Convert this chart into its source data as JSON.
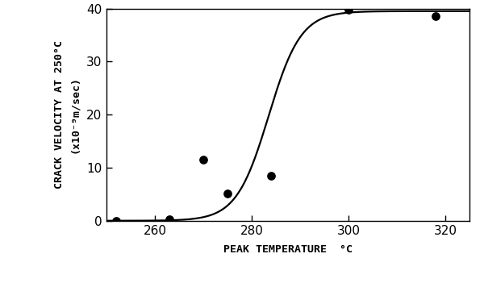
{
  "scatter_x": [
    252,
    263,
    270,
    275,
    284,
    300,
    318
  ],
  "scatter_y": [
    0.0,
    0.3,
    11.5,
    5.2,
    8.5,
    39.8,
    38.5
  ],
  "xlim": [
    250,
    325
  ],
  "ylim": [
    0,
    40
  ],
  "xticks": [
    260,
    280,
    300,
    320
  ],
  "yticks": [
    0,
    10,
    20,
    30,
    40
  ],
  "xlabel": "PEAK TEMPERATURE  °C",
  "ylabel_top": "CRACK VELOCITY AT 250°C",
  "ylabel_bot": "(x10⁻⁹m/sec)",
  "curve_midpoint": 283.5,
  "curve_steepness": 0.3,
  "curve_max": 39.5,
  "line_color": "#000000",
  "scatter_color": "#000000",
  "bg_color": "#ffffff",
  "scatter_size": 45,
  "line_width": 1.6,
  "tick_fontsize": 11,
  "label_fontsize": 9.5
}
